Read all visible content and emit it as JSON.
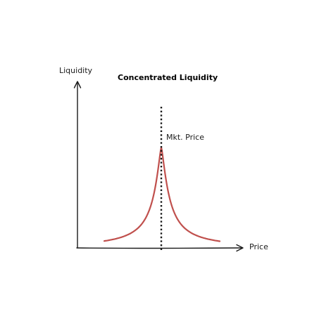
{
  "chart_data": {
    "type": "line",
    "title": "Concentrated Liquidity",
    "xlabel": "Price",
    "ylabel": "Liquidity",
    "annotation": "Mkt. Price",
    "grid": false,
    "colors": {
      "curve": "#c0504d",
      "axis": "#1a1a1a"
    }
  }
}
